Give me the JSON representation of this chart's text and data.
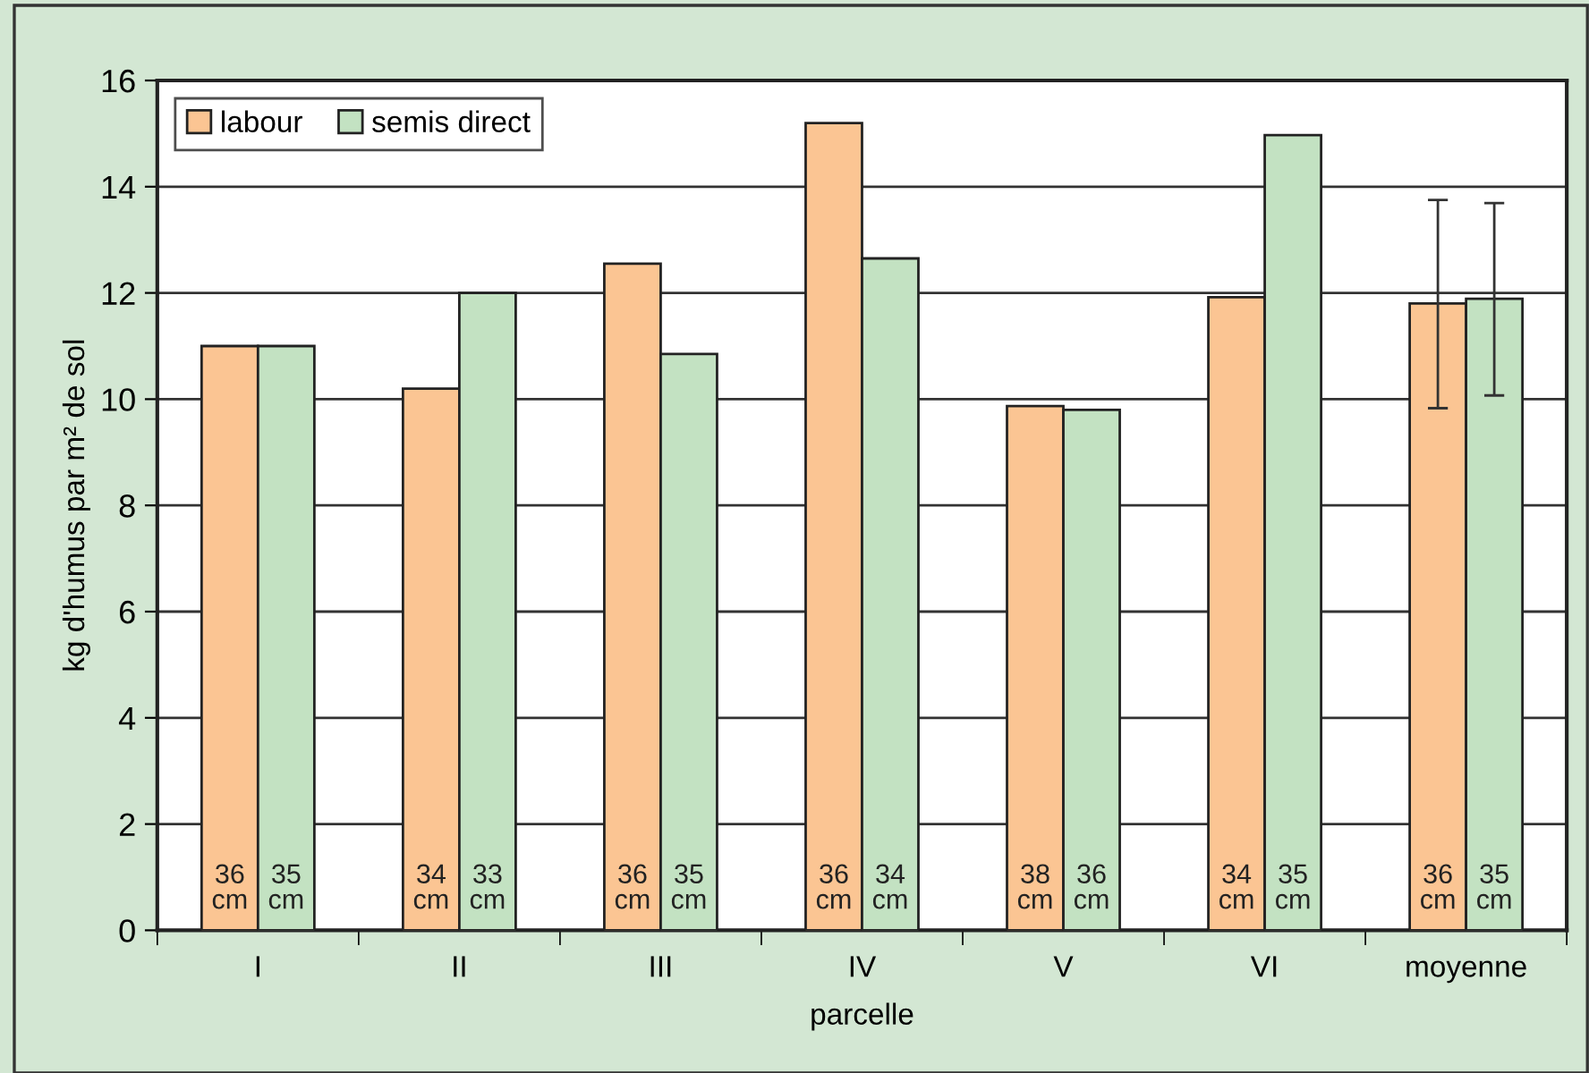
{
  "chart_data": {
    "type": "bar",
    "xlabel": "parcelle",
    "ylabel": "kg d'humus par m² de sol",
    "categories": [
      "I",
      "II",
      "III",
      "IV",
      "V",
      "VI",
      "moyenne"
    ],
    "series": [
      {
        "name": "labour",
        "color": "#fbc593",
        "values": [
          11.0,
          10.2,
          12.55,
          15.2,
          9.87,
          11.92,
          11.8
        ],
        "errors": [
          null,
          null,
          null,
          null,
          null,
          null,
          [
            9.83,
            13.75
          ]
        ]
      },
      {
        "name": "semis direct",
        "color": "#c3e2c2",
        "values": [
          11.0,
          12.0,
          10.85,
          12.65,
          9.8,
          14.97,
          11.89
        ],
        "errors": [
          null,
          null,
          null,
          null,
          null,
          null,
          [
            10.07,
            13.69
          ]
        ]
      }
    ],
    "annotations": [
      "36\ncm",
      "35\ncm",
      "34\ncm",
      "33\ncm",
      "36\ncm",
      "35\ncm",
      "36\ncm",
      "34\ncm",
      "38\ncm",
      "36\ncm",
      "34\ncm",
      "35\ncm",
      "36\ncm",
      "35\ncm"
    ],
    "ylim": [
      0,
      16
    ],
    "yticks": [
      0,
      2,
      4,
      6,
      8,
      10,
      12,
      14,
      16
    ],
    "grid": "y",
    "legend": "top left"
  }
}
